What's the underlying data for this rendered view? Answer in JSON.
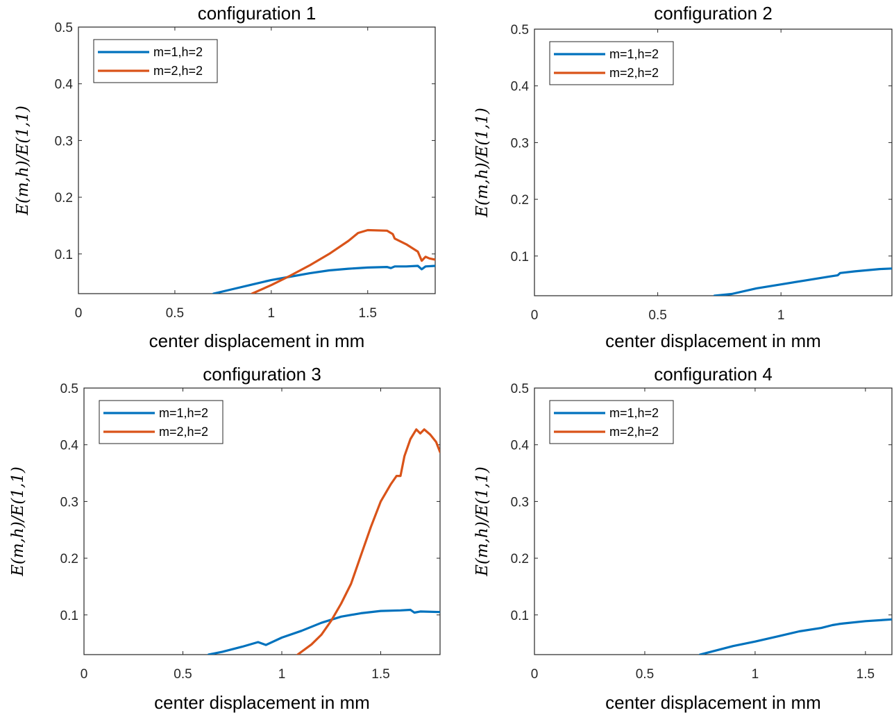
{
  "colors": {
    "series1": "#0072BD",
    "series2": "#D95319"
  },
  "chart_data": [
    {
      "type": "line",
      "title": "configuration 1",
      "xlabel": "center displacement in mm",
      "ylabel": "E(m,h)/E(1,1)",
      "xlim": [
        0,
        1.85
      ],
      "ylim": [
        0.03,
        0.5
      ],
      "xticks": [
        0,
        0.5,
        1,
        1.5
      ],
      "xticklabels": [
        "0",
        "0.5",
        "1",
        "1.5"
      ],
      "yticks": [
        0.1,
        0.2,
        0.3,
        0.4,
        0.5
      ],
      "yticklabels": [
        "0.1",
        "0.2",
        "0.3",
        "0.4",
        "0.5"
      ],
      "legend_position": "top-left",
      "series": [
        {
          "name": "m=1,h=2",
          "x": [
            0.7,
            0.8,
            0.9,
            1.0,
            1.1,
            1.2,
            1.3,
            1.4,
            1.5,
            1.6,
            1.62,
            1.64,
            1.7,
            1.76,
            1.78,
            1.8,
            1.85
          ],
          "y": [
            0.03,
            0.038,
            0.046,
            0.054,
            0.06,
            0.066,
            0.071,
            0.074,
            0.076,
            0.077,
            0.075,
            0.078,
            0.078,
            0.079,
            0.073,
            0.078,
            0.079
          ]
        },
        {
          "name": "m=2,h=2",
          "x": [
            0.9,
            1.0,
            1.1,
            1.2,
            1.3,
            1.4,
            1.45,
            1.5,
            1.6,
            1.63,
            1.64,
            1.7,
            1.76,
            1.78,
            1.8,
            1.82,
            1.85
          ],
          "y": [
            0.03,
            0.045,
            0.062,
            0.08,
            0.1,
            0.123,
            0.137,
            0.142,
            0.141,
            0.135,
            0.127,
            0.117,
            0.104,
            0.088,
            0.095,
            0.092,
            0.09
          ]
        }
      ]
    },
    {
      "type": "line",
      "title": "configuration 2",
      "xlabel": "center displacement in mm",
      "ylabel": "E(m,h)/E(1,1)",
      "xlim": [
        0,
        1.45
      ],
      "ylim": [
        0.03,
        0.5
      ],
      "xticks": [
        0,
        0.5,
        1
      ],
      "xticklabels": [
        "0",
        "0.5",
        "1"
      ],
      "yticks": [
        0.1,
        0.2,
        0.3,
        0.4,
        0.5
      ],
      "yticklabels": [
        "0.1",
        "0.2",
        "0.3",
        "0.4",
        "0.5"
      ],
      "legend_position": "top-left",
      "series": [
        {
          "name": "m=1,h=2",
          "x": [
            0.73,
            0.8,
            0.9,
            1.0,
            1.1,
            1.2,
            1.23,
            1.24,
            1.3,
            1.4,
            1.45
          ],
          "y": [
            0.03,
            0.033,
            0.043,
            0.05,
            0.057,
            0.064,
            0.066,
            0.07,
            0.073,
            0.077,
            0.078
          ]
        },
        {
          "name": "m=2,h=2",
          "x": [],
          "y": []
        }
      ]
    },
    {
      "type": "line",
      "title": "configuration 3",
      "xlabel": "center displacement in mm",
      "ylabel": "E(m,h)/E(1,1)",
      "xlim": [
        0,
        1.8
      ],
      "ylim": [
        0.03,
        0.5
      ],
      "xticks": [
        0,
        0.5,
        1,
        1.5
      ],
      "xticklabels": [
        "0",
        "0.5",
        "1",
        "1.5"
      ],
      "yticks": [
        0.1,
        0.2,
        0.3,
        0.4,
        0.5
      ],
      "yticklabels": [
        "0.1",
        "0.2",
        "0.3",
        "0.4",
        "0.5"
      ],
      "legend_position": "top-left",
      "series": [
        {
          "name": "m=1,h=2",
          "x": [
            0.63,
            0.7,
            0.8,
            0.88,
            0.92,
            1.0,
            1.1,
            1.2,
            1.3,
            1.4,
            1.5,
            1.6,
            1.65,
            1.67,
            1.7,
            1.8
          ],
          "y": [
            0.03,
            0.035,
            0.044,
            0.052,
            0.047,
            0.06,
            0.072,
            0.086,
            0.097,
            0.103,
            0.107,
            0.108,
            0.109,
            0.104,
            0.106,
            0.105
          ]
        },
        {
          "name": "m=2,h=2",
          "x": [
            1.08,
            1.15,
            1.2,
            1.25,
            1.3,
            1.35,
            1.4,
            1.45,
            1.5,
            1.55,
            1.58,
            1.6,
            1.62,
            1.65,
            1.68,
            1.7,
            1.72,
            1.75,
            1.78,
            1.8
          ],
          "y": [
            0.03,
            0.048,
            0.065,
            0.09,
            0.12,
            0.155,
            0.205,
            0.255,
            0.3,
            0.33,
            0.345,
            0.345,
            0.38,
            0.41,
            0.427,
            0.42,
            0.427,
            0.418,
            0.405,
            0.387
          ]
        }
      ]
    },
    {
      "type": "line",
      "title": "configuration 4",
      "xlabel": "center displacement in mm",
      "ylabel": "E(m,h)/E(1,1)",
      "xlim": [
        0,
        1.62
      ],
      "ylim": [
        0.03,
        0.5
      ],
      "xticks": [
        0,
        0.5,
        1,
        1.5
      ],
      "xticklabels": [
        "0",
        "0.5",
        "1",
        "1.5"
      ],
      "yticks": [
        0.1,
        0.2,
        0.3,
        0.4,
        0.5
      ],
      "yticklabels": [
        "0.1",
        "0.2",
        "0.3",
        "0.4",
        "0.5"
      ],
      "legend_position": "top-left",
      "series": [
        {
          "name": "m=1,h=2",
          "x": [
            0.75,
            0.8,
            0.9,
            1.0,
            1.1,
            1.2,
            1.3,
            1.35,
            1.38,
            1.4,
            1.5,
            1.62
          ],
          "y": [
            0.03,
            0.035,
            0.045,
            0.053,
            0.062,
            0.071,
            0.077,
            0.082,
            0.084,
            0.085,
            0.089,
            0.092
          ]
        },
        {
          "name": "m=2,h=2",
          "x": [],
          "y": []
        }
      ]
    }
  ]
}
